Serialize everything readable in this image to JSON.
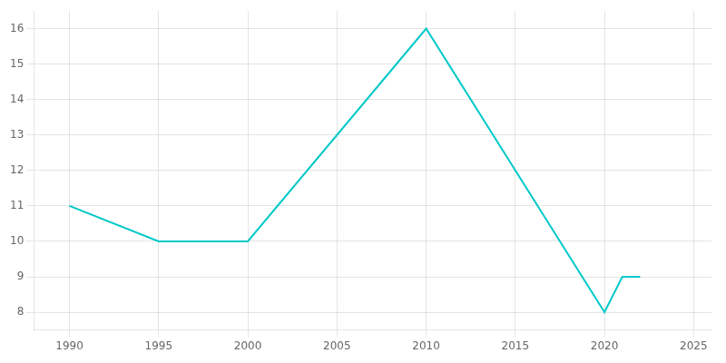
{
  "chart_data": {
    "type": "line",
    "x": [
      1990,
      1995,
      2000,
      2010,
      2020,
      2021,
      2022
    ],
    "values": [
      11,
      10,
      10,
      16,
      8,
      9,
      9
    ],
    "color": "#00C8C8",
    "marker": "none",
    "xlim": [
      1988,
      2026
    ],
    "ylim": [
      7.5,
      16.5
    ],
    "xticks": [
      1990,
      1995,
      2000,
      2005,
      2010,
      2015,
      2020,
      2025
    ],
    "yticks": [
      8,
      9,
      10,
      11,
      12,
      13,
      14,
      15,
      16
    ],
    "grid": true
  }
}
